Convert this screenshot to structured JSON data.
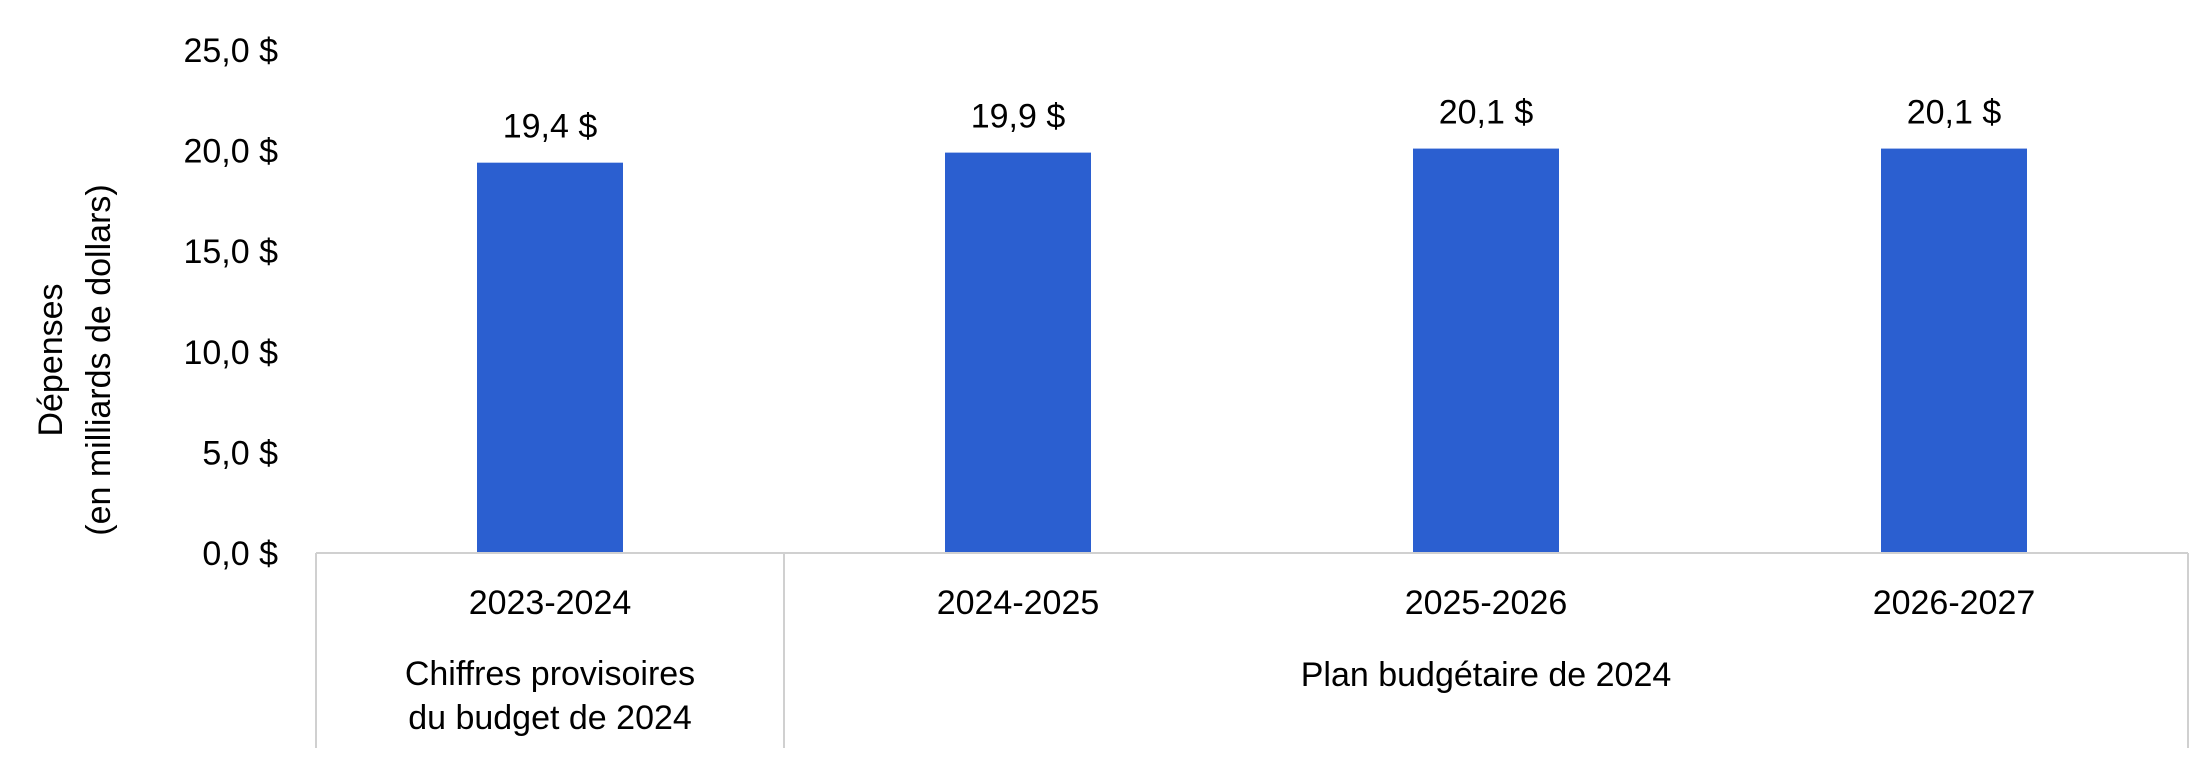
{
  "chart_data": {
    "type": "bar",
    "categories": [
      "2023-2024",
      "2024-2025",
      "2025-2026",
      "2026-2027"
    ],
    "values": [
      19.4,
      19.9,
      20.1,
      20.1
    ],
    "value_labels": [
      "19,4 $",
      "19,9 $",
      "20,1 $",
      "20,1 $"
    ],
    "ylabel": [
      "Dépenses",
      "(en milliards de dollars)"
    ],
    "yticks": [
      0,
      5,
      10,
      15,
      20,
      25
    ],
    "ytick_labels": [
      "0,0 $",
      "5,0 $",
      "10,0 $",
      "15,0 $",
      "20,0 $",
      "25,0 $"
    ],
    "ylim": [
      0,
      25
    ],
    "grid": false,
    "groups": [
      {
        "label_lines": [
          "Chiffres provisoires",
          "du budget de 2024"
        ],
        "categories": [
          "2023-2024"
        ]
      },
      {
        "label_lines": [
          "Plan budgétaire de 2024"
        ],
        "categories": [
          "2024-2025",
          "2025-2026",
          "2026-2027"
        ]
      }
    ],
    "colors": {
      "bar": "#2B5FD0"
    }
  }
}
